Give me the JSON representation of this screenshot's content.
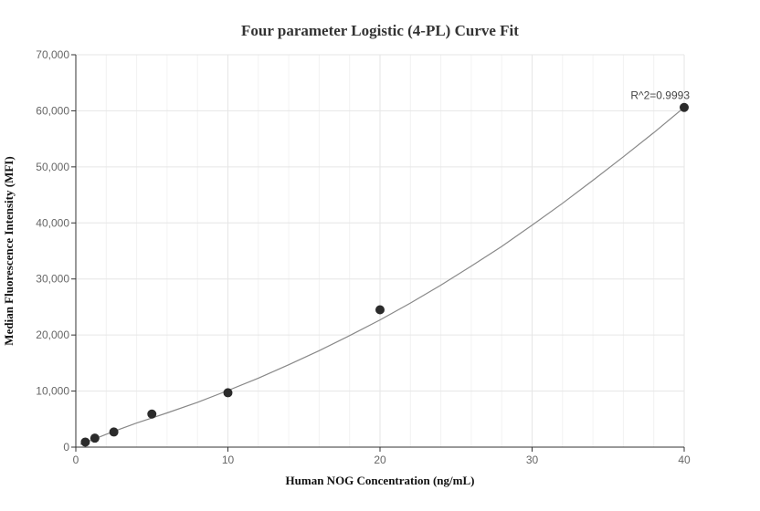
{
  "chart_data": {
    "type": "scatter",
    "title": "Four parameter Logistic (4-PL) Curve Fit",
    "xlabel": "Human NOG Concentration (ng/mL)",
    "ylabel": "Median Fluorescence Intensity (MFI)",
    "xlim": [
      0,
      40
    ],
    "ylim": [
      0,
      70000
    ],
    "x_ticks": [
      0,
      10,
      20,
      30,
      40
    ],
    "x_tick_labels": [
      "0",
      "10",
      "20",
      "30",
      "40"
    ],
    "y_ticks": [
      0,
      10000,
      20000,
      30000,
      40000,
      50000,
      60000,
      70000
    ],
    "y_tick_labels": [
      "0",
      "10,000",
      "20,000",
      "30,000",
      "40,000",
      "50,000",
      "60,000",
      "70,000"
    ],
    "grid": true,
    "series": [
      {
        "type": "scatter",
        "x": [
          0.625,
          1.25,
          2.5,
          5,
          10,
          20,
          40
        ],
        "y": [
          900,
          1600,
          2700,
          5900,
          9700,
          24500,
          60600
        ]
      }
    ],
    "fit_curve": {
      "x": [
        0.3,
        1,
        2,
        3,
        4,
        5,
        6,
        8,
        10,
        12,
        14,
        16,
        18,
        20,
        22,
        24,
        26,
        28,
        30,
        32,
        34,
        36,
        38,
        40
      ],
      "y": [
        500,
        1200,
        2300,
        3300,
        4300,
        5200,
        6100,
        8000,
        10100,
        12300,
        14700,
        17200,
        19900,
        22700,
        25700,
        28900,
        32300,
        35800,
        39600,
        43500,
        47600,
        51800,
        56100,
        60600
      ]
    },
    "annotations": [
      {
        "text": "R^2=0.9993",
        "x": 40,
        "y": 60600
      }
    ],
    "colors": {
      "point": "#2b2b2b",
      "curve": "#888888"
    }
  }
}
